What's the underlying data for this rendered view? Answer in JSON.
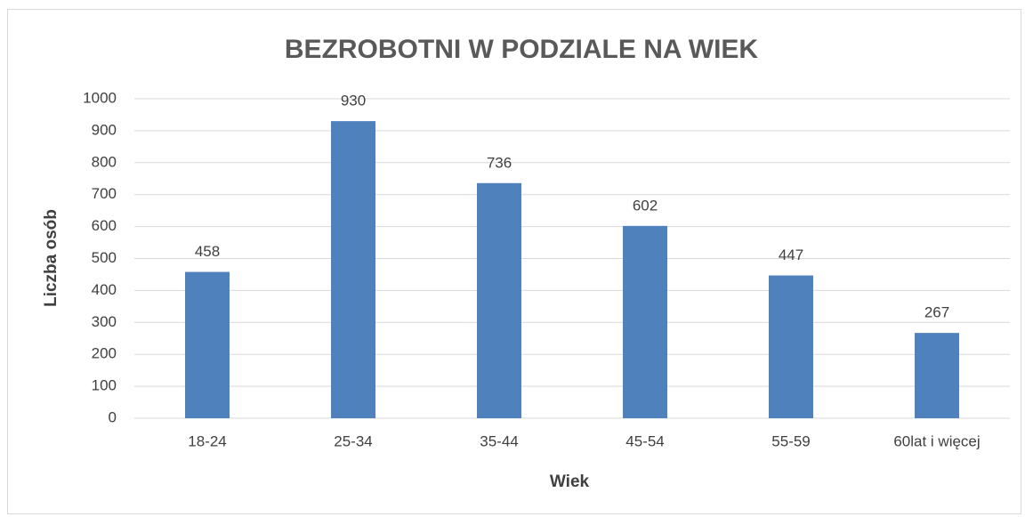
{
  "chart_data": {
    "type": "bar",
    "title": "BEZROBOTNI W PODZIALE NA WIEK",
    "x_label": "Wiek",
    "y_label": "Liczba osób",
    "categories": [
      "18-24",
      "25-34",
      "35-44",
      "45-54",
      "55-59",
      "60lat i więcej"
    ],
    "values": [
      458,
      930,
      736,
      602,
      447,
      267
    ],
    "color": "#4f81bd",
    "ylim": [
      0,
      1000
    ],
    "yticks": [
      0,
      100,
      200,
      300,
      400,
      500,
      600,
      700,
      800,
      900,
      1000
    ],
    "grid": true
  }
}
